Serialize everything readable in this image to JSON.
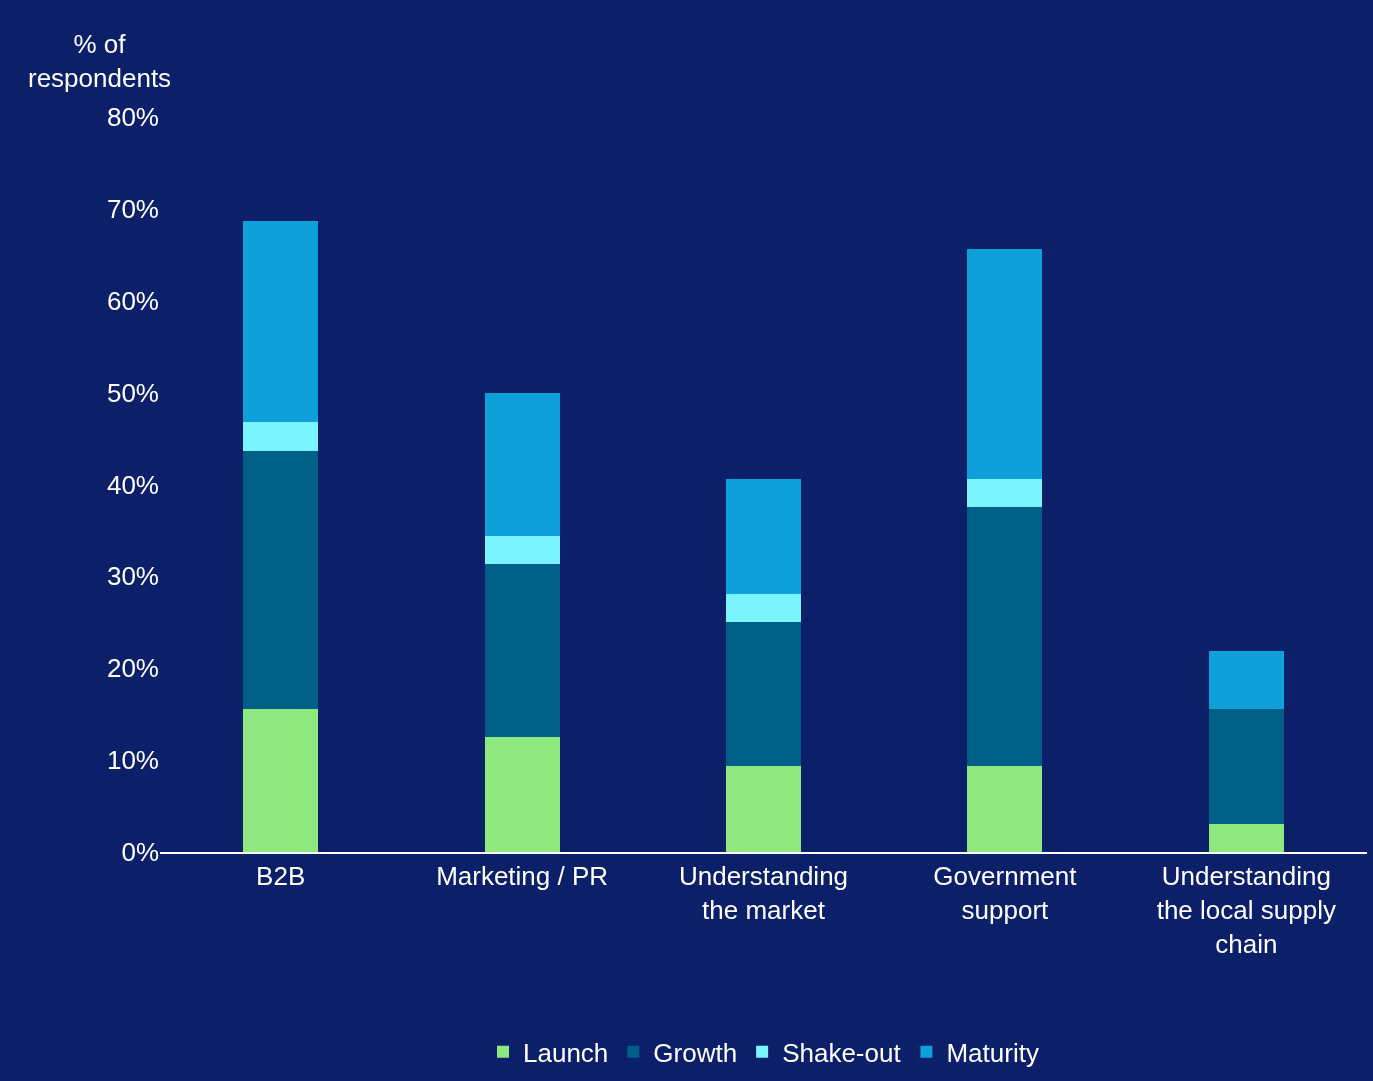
{
  "chart_data": {
    "type": "bar",
    "stacked": true,
    "ylabel": "% of respondents",
    "categories": [
      "B2B",
      "Marketing / PR",
      "Understanding the market",
      "Government support",
      "Understanding the local supply chain"
    ],
    "series": [
      {
        "name": "Launch",
        "color": "#8ee87f",
        "values": [
          15.6,
          12.5,
          9.4,
          9.4,
          3.1
        ]
      },
      {
        "name": "Growth",
        "color": "#005f86",
        "values": [
          28.1,
          18.8,
          15.6,
          28.1,
          12.5
        ]
      },
      {
        "name": "Shake-out",
        "color": "#7af5ff",
        "values": [
          3.1,
          3.1,
          3.1,
          3.1,
          0
        ]
      },
      {
        "name": "Maturity",
        "color": "#0ea0d8",
        "values": [
          21.9,
          15.6,
          12.5,
          25.0,
          6.3
        ]
      }
    ],
    "ylim": [
      0,
      80
    ],
    "yticks": [
      {
        "value": 0,
        "label": "0%"
      },
      {
        "value": 10,
        "label": "10%"
      },
      {
        "value": 20,
        "label": "20%"
      },
      {
        "value": 30,
        "label": "30%"
      },
      {
        "value": 40,
        "label": "40%"
      },
      {
        "value": 50,
        "label": "50%"
      },
      {
        "value": 60,
        "label": "60%"
      },
      {
        "value": 70,
        "label": "70%"
      },
      {
        "value": 80,
        "label": "80%"
      }
    ],
    "legend": "bottom"
  }
}
